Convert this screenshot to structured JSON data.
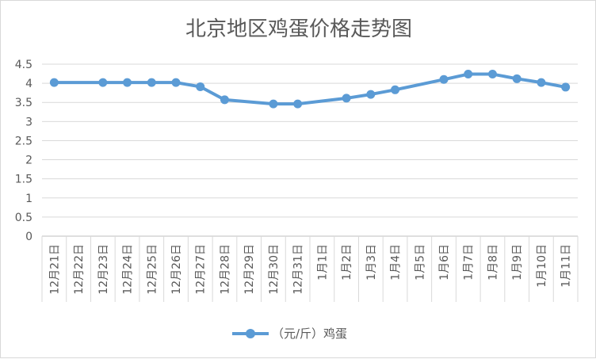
{
  "chart_data": {
    "type": "line",
    "title": "北京地区鸡蛋价格走势图",
    "categories": [
      "12月21日",
      "12月22日",
      "12月23日",
      "12月24日",
      "12月25日",
      "12月26日",
      "12月27日",
      "12月28日",
      "12月29日",
      "12月30日",
      "12月31日",
      "1月1日",
      "1月2日",
      "1月3日",
      "1月4日",
      "1月5日",
      "1月6日",
      "1月7日",
      "1月8日",
      "1月9日",
      "1月10日",
      "1月11日"
    ],
    "yticks": [
      "0",
      "0.5",
      "1",
      "1.5",
      "2",
      "2.5",
      "3",
      "3.5",
      "4",
      "4.5"
    ],
    "ylim": [
      0,
      4.5
    ],
    "grid": true,
    "legend_position": "bottom",
    "series": [
      {
        "name": "（元/斤）鸡蛋",
        "color": "#5b9bd5",
        "points": [
          {
            "x": "12月21日",
            "y": 4.02
          },
          {
            "x": "12月23日",
            "y": 4.02
          },
          {
            "x": "12月24日",
            "y": 4.02
          },
          {
            "x": "12月25日",
            "y": 4.02
          },
          {
            "x": "12月26日",
            "y": 4.02
          },
          {
            "x": "12月27日",
            "y": 3.91
          },
          {
            "x": "12月28日",
            "y": 3.57
          },
          {
            "x": "12月30日",
            "y": 3.46
          },
          {
            "x": "12月31日",
            "y": 3.46
          },
          {
            "x": "1月2日",
            "y": 3.61
          },
          {
            "x": "1月3日",
            "y": 3.71
          },
          {
            "x": "1月4日",
            "y": 3.83
          },
          {
            "x": "1月6日",
            "y": 4.1
          },
          {
            "x": "1月7日",
            "y": 4.24
          },
          {
            "x": "1月8日",
            "y": 4.24
          },
          {
            "x": "1月9日",
            "y": 4.12
          },
          {
            "x": "1月10日",
            "y": 4.02
          },
          {
            "x": "1月11日",
            "y": 3.9
          }
        ]
      }
    ]
  }
}
